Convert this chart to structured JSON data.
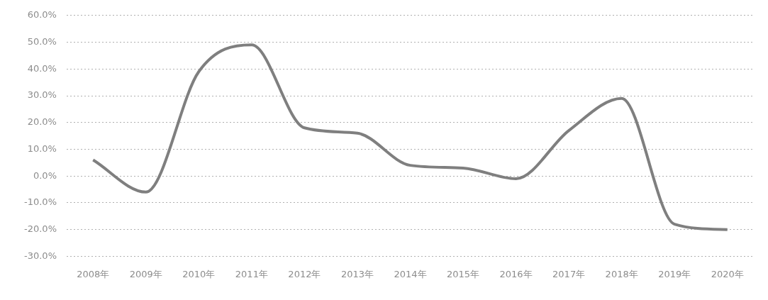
{
  "chart_data": {
    "type": "line",
    "categories": [
      "2008年",
      "2009年",
      "2010年",
      "2011年",
      "2012年",
      "2013年",
      "2014年",
      "2015年",
      "2016年",
      "2017年",
      "2018年",
      "2019年",
      "2020年"
    ],
    "series": [
      {
        "color": "#7f7f7f",
        "values": [
          6,
          -6,
          39,
          49,
          18,
          16,
          4,
          3,
          -1,
          17,
          29,
          -18,
          -20
        ]
      }
    ],
    "ylim": [
      -30,
      60
    ],
    "yticks": [
      {
        "value": -30,
        "label": "-30.0%"
      },
      {
        "value": -20,
        "label": "-20.0%"
      },
      {
        "value": -10,
        "label": "-10.0%"
      },
      {
        "value": 0,
        "label": "0.0%"
      },
      {
        "value": 10,
        "label": "10.0%"
      },
      {
        "value": 20,
        "label": "20.0%"
      },
      {
        "value": 30,
        "label": "30.0%"
      },
      {
        "value": 40,
        "label": "40.0%"
      },
      {
        "value": 50,
        "label": "50.0%"
      },
      {
        "value": 60,
        "label": "60.0%"
      }
    ],
    "grid": "y",
    "legend": false,
    "marker": "none",
    "line_style": "solid"
  }
}
